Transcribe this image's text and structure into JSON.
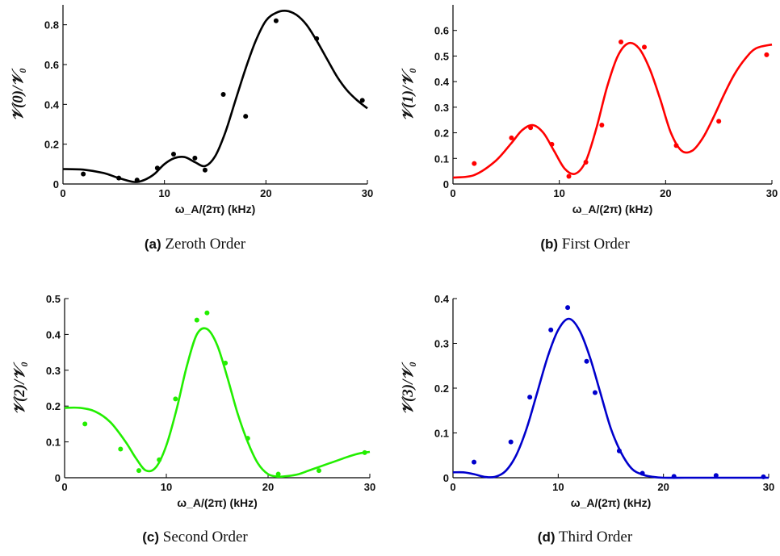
{
  "chart_data": [
    {
      "type": "scatter",
      "panel": "a",
      "color": "#000000",
      "caption_tag": "(a)",
      "caption_text": "Zeroth Order",
      "ylabel": "𝒱(0)/𝒱₀",
      "xlabel": "ω_A/(2π) (kHz)",
      "xlim": [
        0,
        30
      ],
      "ylim": [
        0,
        0.9
      ],
      "xticks": [
        0,
        10,
        20,
        30
      ],
      "yticks": [
        0,
        0.2,
        0.4,
        0.6,
        0.8
      ],
      "ytick_labels": [
        "0",
        "0.2",
        "0.4",
        "0.6",
        "0.8"
      ],
      "points": {
        "x": [
          2,
          5.5,
          7.3,
          9.3,
          10.9,
          13,
          14,
          15.8,
          18,
          21,
          25,
          29.5
        ],
        "y": [
          0.05,
          0.03,
          0.02,
          0.08,
          0.15,
          0.13,
          0.07,
          0.45,
          0.34,
          0.82,
          0.73,
          0.42
        ]
      },
      "fit": {
        "x": [
          0,
          2,
          4,
          5.5,
          7,
          8,
          9,
          10,
          11,
          12,
          13,
          14,
          15,
          16,
          17,
          18,
          19,
          20,
          21,
          22,
          23,
          24,
          25,
          26,
          27,
          28,
          29,
          30
        ],
        "y": [
          0.075,
          0.072,
          0.055,
          0.03,
          0.01,
          0.02,
          0.05,
          0.1,
          0.13,
          0.135,
          0.11,
          0.09,
          0.14,
          0.26,
          0.42,
          0.58,
          0.72,
          0.82,
          0.86,
          0.87,
          0.85,
          0.8,
          0.72,
          0.63,
          0.54,
          0.47,
          0.42,
          0.38
        ]
      }
    },
    {
      "type": "scatter",
      "panel": "b",
      "color": "#ff0000",
      "caption_tag": "(b)",
      "caption_text": "First Order",
      "ylabel": "𝒱(1)/𝒱₀",
      "xlabel": "ω_A/(2π) (kHz)",
      "xlim": [
        0,
        30
      ],
      "ylim": [
        0,
        0.7
      ],
      "xticks": [
        0,
        10,
        20,
        30
      ],
      "yticks": [
        0,
        0.1,
        0.2,
        0.3,
        0.4,
        0.5,
        0.6
      ],
      "ytick_labels": [
        "0",
        "0.1",
        "0.2",
        "0.3",
        "0.4",
        "0.5",
        "0.6"
      ],
      "points": {
        "x": [
          2,
          5.5,
          7.3,
          9.3,
          10.9,
          12.5,
          14,
          15.8,
          18,
          21,
          25,
          29.5
        ],
        "y": [
          0.08,
          0.18,
          0.22,
          0.155,
          0.03,
          0.085,
          0.23,
          0.555,
          0.535,
          0.15,
          0.245,
          0.505
        ]
      },
      "fit": {
        "x": [
          0,
          2,
          4,
          5.5,
          6.5,
          7.5,
          8.5,
          9.5,
          10.5,
          11.5,
          12.5,
          13.5,
          14.5,
          15.5,
          16.5,
          17.5,
          18.5,
          19.5,
          20.5,
          21.5,
          22.5,
          23.5,
          24.5,
          25.5,
          26.5,
          27.5,
          28.5,
          30
        ],
        "y": [
          0.025,
          0.035,
          0.09,
          0.16,
          0.21,
          0.23,
          0.2,
          0.13,
          0.06,
          0.04,
          0.09,
          0.22,
          0.38,
          0.5,
          0.55,
          0.53,
          0.45,
          0.33,
          0.2,
          0.13,
          0.13,
          0.18,
          0.26,
          0.35,
          0.43,
          0.49,
          0.53,
          0.545
        ]
      }
    },
    {
      "type": "scatter",
      "panel": "c",
      "color": "#22ee00",
      "caption_tag": "(c)",
      "caption_text": "Second Order",
      "ylabel": "𝒱(2)/𝒱₀",
      "xlabel": "ω_A/(2π) (kHz)",
      "xlim": [
        0,
        30
      ],
      "ylim": [
        0,
        0.5
      ],
      "xticks": [
        0,
        10,
        20,
        30
      ],
      "yticks": [
        0,
        0.1,
        0.2,
        0.3,
        0.4,
        0.5
      ],
      "ytick_labels": [
        "0",
        "0.1",
        "0.2",
        "0.3",
        "0.4",
        "0.5"
      ],
      "points": {
        "x": [
          2,
          5.5,
          7.3,
          9.3,
          10.9,
          13,
          14,
          15.8,
          18,
          21,
          25,
          29.5
        ],
        "y": [
          0.15,
          0.08,
          0.02,
          0.05,
          0.22,
          0.44,
          0.46,
          0.32,
          0.11,
          0.01,
          0.02,
          0.07
        ]
      },
      "fit": {
        "x": [
          0,
          1.5,
          3,
          4.5,
          6,
          7,
          8,
          9,
          10,
          11,
          12,
          13,
          14,
          15,
          16,
          17,
          18,
          19,
          20,
          21,
          22,
          23,
          24,
          25,
          26,
          27,
          28,
          29,
          30
        ],
        "y": [
          0.195,
          0.195,
          0.185,
          0.155,
          0.1,
          0.055,
          0.02,
          0.03,
          0.09,
          0.19,
          0.31,
          0.4,
          0.415,
          0.37,
          0.28,
          0.18,
          0.1,
          0.04,
          0.01,
          0.003,
          0.005,
          0.01,
          0.02,
          0.03,
          0.04,
          0.05,
          0.06,
          0.068,
          0.072
        ]
      }
    },
    {
      "type": "scatter",
      "panel": "d",
      "color": "#0000cc",
      "caption_tag": "(d)",
      "caption_text": "Third Order",
      "ylabel": "𝒱(3)/𝒱₀",
      "xlabel": "ω_A/(2π) (kHz)",
      "xlim": [
        0,
        30
      ],
      "ylim": [
        0,
        0.4
      ],
      "xticks": [
        0,
        10,
        20,
        30
      ],
      "yticks": [
        0,
        0.1,
        0.2,
        0.3,
        0.4
      ],
      "ytick_labels": [
        "0",
        "0.1",
        "0.2",
        "0.3",
        "0.4"
      ],
      "points": {
        "x": [
          2,
          5.5,
          7.3,
          9.3,
          10.9,
          12.7,
          13.5,
          15.8,
          18,
          21,
          25,
          29.5
        ],
        "y": [
          0.035,
          0.08,
          0.18,
          0.33,
          0.38,
          0.26,
          0.19,
          0.06,
          0.01,
          0.003,
          0.005,
          0.002
        ]
      },
      "fit": {
        "x": [
          0,
          1,
          2,
          3,
          4,
          5,
          6,
          7,
          8,
          9,
          10,
          11,
          12,
          13,
          14,
          15,
          16,
          17,
          18,
          19,
          20,
          22,
          24,
          26,
          28,
          30
        ],
        "y": [
          0.012,
          0.012,
          0.008,
          0.002,
          0.002,
          0.015,
          0.05,
          0.11,
          0.19,
          0.27,
          0.33,
          0.355,
          0.33,
          0.27,
          0.19,
          0.11,
          0.055,
          0.02,
          0.007,
          0.002,
          0.0,
          0.0,
          0.0,
          0.0,
          0.0,
          0.0
        ]
      }
    }
  ]
}
